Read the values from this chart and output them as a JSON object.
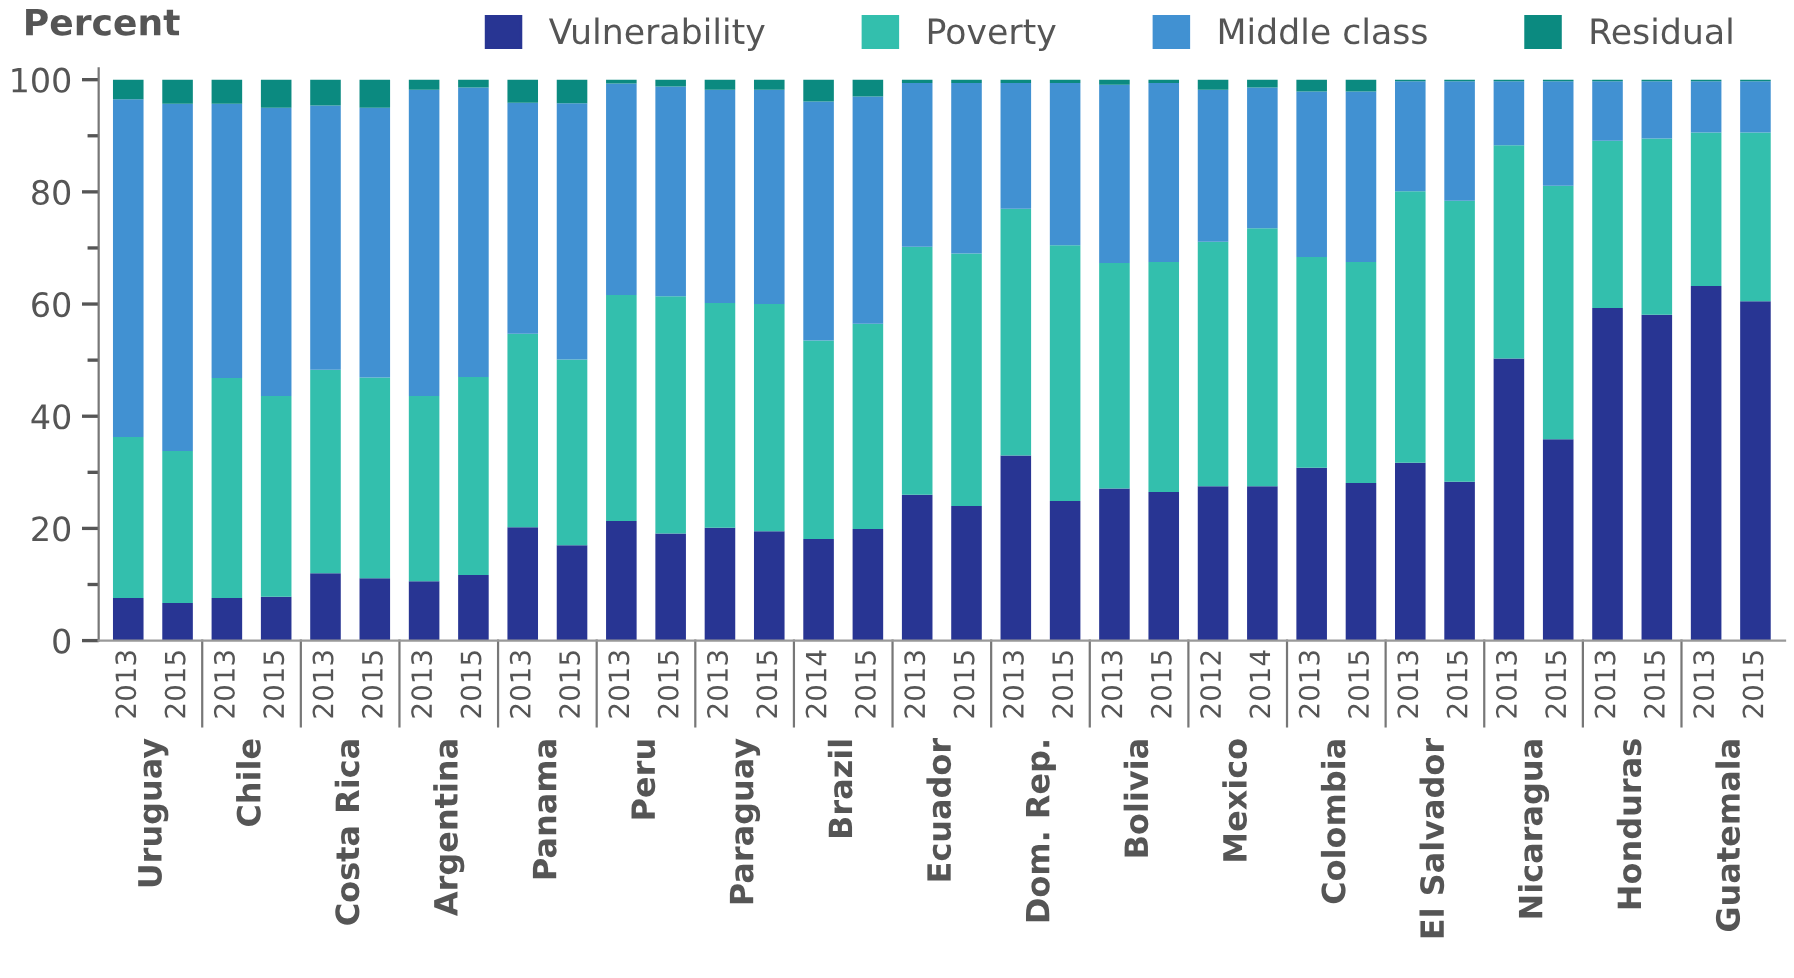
{
  "chart_data": {
    "type": "bar",
    "stacked": true,
    "ylabel": "Percent",
    "categories": [
      "2013",
      "2015",
      "2013",
      "2015",
      "2013",
      "2015",
      "2013",
      "2015",
      "2013",
      "2015",
      "2013",
      "2015",
      "2013",
      "2015",
      "2014",
      "2015",
      "2013",
      "2015",
      "2013",
      "2015",
      "2013",
      "2015",
      "2012",
      "2014",
      "2013",
      "2015",
      "2013",
      "2015",
      "2013",
      "2015",
      "2013",
      "2015",
      "2013",
      "2015"
    ],
    "annotations": [
      "Uruguay",
      "Chile",
      "Costa Rica",
      "Argentina",
      "Panama",
      "Peru",
      "Paraguay",
      "Brazil",
      "Ecuador",
      "Dom. Rep.",
      "Bolivia",
      "Mexico",
      "Colombia",
      "El Salvador",
      "Nicaragua",
      "Honduras",
      "Guatemala"
    ],
    "series": [
      {
        "name": "Vulnerability",
        "color": "#283593",
        "values": [
          7.6,
          6.7,
          7.6,
          7.8,
          12.0,
          11.1,
          10.6,
          11.7,
          20.2,
          17.0,
          21.3,
          19.1,
          20.1,
          19.5,
          18.1,
          19.9,
          26.0,
          24.0,
          33.0,
          24.9,
          27.1,
          26.5,
          27.5,
          27.5,
          30.8,
          28.1,
          31.7,
          28.3,
          50.3,
          35.9,
          59.3,
          58.1,
          63.2,
          60.5
        ]
      },
      {
        "name": "Poverty",
        "color": "#33bfad",
        "values": [
          28.7,
          27.1,
          39.2,
          35.8,
          36.3,
          35.8,
          33.0,
          35.3,
          34.5,
          33.1,
          40.3,
          42.3,
          40.1,
          40.5,
          35.4,
          36.6,
          44.2,
          45.0,
          44.0,
          45.6,
          40.2,
          41.0,
          43.6,
          46.0,
          37.6,
          39.4,
          48.4,
          50.1,
          38.0,
          45.2,
          29.8,
          31.4,
          27.4,
          30.1
        ]
      },
      {
        "name": "Middle class",
        "color": "#4191d2",
        "values": [
          60.2,
          61.9,
          48.9,
          51.4,
          47.1,
          48.1,
          54.6,
          51.6,
          41.2,
          45.7,
          37.7,
          37.4,
          38.0,
          38.2,
          42.6,
          40.5,
          29.2,
          30.4,
          22.4,
          28.9,
          31.8,
          31.9,
          27.1,
          25.1,
          29.5,
          30.4,
          19.6,
          21.3,
          11.4,
          18.6,
          10.6,
          10.2,
          9.1,
          9.1
        ]
      },
      {
        "name": "Residual",
        "color": "#0b8a80",
        "values": [
          3.5,
          4.3,
          4.3,
          5.0,
          4.6,
          5.0,
          1.8,
          1.4,
          4.1,
          4.2,
          0.7,
          1.2,
          1.8,
          1.8,
          3.9,
          3.0,
          0.6,
          0.6,
          0.6,
          0.6,
          0.9,
          0.6,
          1.8,
          1.4,
          2.1,
          2.1,
          0.3,
          0.3,
          0.3,
          0.3,
          0.3,
          0.3,
          0.3,
          0.3
        ]
      }
    ],
    "ylim": [
      0,
      102
    ],
    "yticks": [
      0,
      {
        "value": 10,
        "label": null
      },
      20,
      {
        "value": 30,
        "label": null
      },
      40,
      {
        "value": 50,
        "label": null
      },
      60,
      {
        "value": 70,
        "label": null
      },
      80,
      {
        "value": 90,
        "label": null
      },
      100
    ],
    "grid": false,
    "legend": "top"
  }
}
